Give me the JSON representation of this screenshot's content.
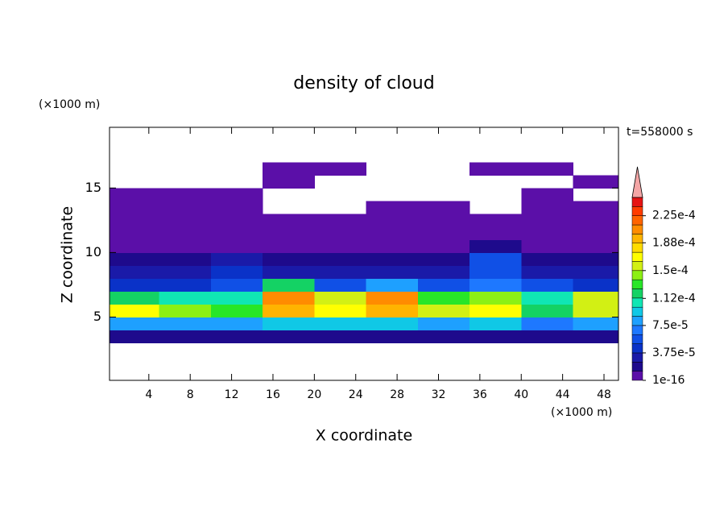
{
  "chart_data": {
    "type": "contour",
    "title": "density of cloud",
    "x_label": "X coordinate",
    "y_label": "Z coordinate",
    "x_unit": "(×1000 m)",
    "y_unit": "(×1000 m)",
    "time_label": "t=558000 s",
    "x": [
      2.5,
      7.5,
      12.5,
      17.5,
      22.5,
      27.5,
      32.5,
      37.5,
      42.5,
      47.5
    ],
    "y": [
      0.5,
      1.5,
      2.5,
      3.5,
      4.5,
      5.5,
      6.5,
      7.5,
      8.5,
      9.5,
      10.5,
      11.5,
      12.5,
      13.5,
      14.5,
      15.5,
      16.5,
      17.5,
      18.5,
      19.5
    ],
    "values": [
      [
        0,
        0,
        0,
        1.5e-05,
        8e-05,
        0.00017,
        0.00012,
        4e-05,
        3e-05,
        2e-05,
        8e-06,
        5e-06,
        5e-06,
        5e-06,
        3e-06,
        0,
        0,
        0,
        0,
        0
      ],
      [
        0,
        0,
        0,
        1.5e-05,
        8e-05,
        0.00014,
        0.0001,
        4e-05,
        3e-05,
        2e-05,
        8e-06,
        5e-06,
        5e-06,
        5e-06,
        3e-06,
        0,
        0,
        0,
        0,
        0
      ],
      [
        0,
        0,
        0,
        1.5e-05,
        8e-05,
        0.00013,
        0.0001,
        6e-05,
        4e-05,
        2.5e-05,
        1e-05,
        5e-06,
        5e-06,
        5e-06,
        3e-06,
        0,
        0,
        0,
        0,
        0
      ],
      [
        0,
        0,
        0,
        1.5e-05,
        9e-05,
        0.00019,
        0.00021,
        0.00012,
        3e-05,
        2e-05,
        8e-06,
        5e-06,
        3e-06,
        0,
        0,
        3e-06,
        3e-06,
        0,
        0,
        0
      ],
      [
        0,
        0,
        0,
        1.5e-05,
        9e-05,
        0.00017,
        0.00015,
        6e-05,
        3e-05,
        2e-05,
        8e-06,
        5e-06,
        3e-06,
        0,
        0,
        0,
        3e-06,
        0,
        0,
        0
      ],
      [
        0,
        0,
        0,
        1.5e-05,
        9e-05,
        0.00019,
        0.0002,
        8e-05,
        3e-05,
        2e-05,
        8e-06,
        5e-06,
        3e-06,
        3e-06,
        0,
        0,
        0,
        0,
        0,
        0
      ],
      [
        0,
        0,
        0,
        1.5e-05,
        8e-05,
        0.00016,
        0.00013,
        5e-05,
        3e-05,
        2e-05,
        8e-06,
        5e-06,
        3e-06,
        3e-06,
        0,
        0,
        0,
        0,
        0,
        0
      ],
      [
        0,
        0,
        0,
        1.5e-05,
        9e-05,
        0.00017,
        0.00014,
        7e-05,
        6e-05,
        5e-05,
        2e-05,
        5e-06,
        3e-06,
        0,
        0,
        0,
        3e-06,
        0,
        0,
        0
      ],
      [
        0,
        0,
        0,
        1.5e-05,
        7e-05,
        0.00012,
        0.00011,
        5e-05,
        3e-05,
        2e-05,
        8e-06,
        5e-06,
        3e-06,
        3e-06,
        3e-06,
        0,
        3e-06,
        0,
        0,
        0
      ],
      [
        0,
        0,
        0,
        1.5e-05,
        8e-05,
        0.00016,
        0.00015,
        4e-05,
        3e-05,
        2e-05,
        8e-06,
        5e-06,
        3e-06,
        3e-06,
        0,
        3e-06,
        0,
        0,
        0,
        0
      ]
    ],
    "xlim": [
      0.2,
      49.4
    ],
    "ylim": [
      0.1,
      19.7
    ],
    "xticks": [
      4,
      8,
      12,
      16,
      20,
      24,
      28,
      32,
      36,
      40,
      44,
      48
    ],
    "yticks": [
      5,
      10,
      15
    ],
    "levels": [
      1e-16,
      1.25e-05,
      2.5e-05,
      3.75e-05,
      5e-05,
      6.25e-05,
      7.5e-05,
      8.75e-05,
      0.0001,
      0.0001125,
      0.000125,
      0.0001375,
      0.00015,
      0.0001625,
      0.000175,
      0.0001875,
      0.0002,
      0.0002125,
      0.000225,
      0.0002375,
      0.00025
    ],
    "colors": [
      "#5b0fa8",
      "#1e0a8c",
      "#1a1aa8",
      "#0a32c8",
      "#1050e6",
      "#1e78ff",
      "#1ea0ff",
      "#10c8e6",
      "#10e6b4",
      "#14d264",
      "#28e628",
      "#8cf014",
      "#d2f014",
      "#ffff00",
      "#ffdc00",
      "#ffb400",
      "#ff8c00",
      "#ff6400",
      "#ff3c00",
      "#e61414",
      "#f4a6a6"
    ],
    "colorbar_ticks": [
      1e-16,
      {
        "value": 3.75e-05,
        "label": "3.75e-5"
      },
      {
        "value": 7.5e-05,
        "label": "7.5e-5"
      },
      {
        "value": 0.000112,
        "label": "1.12e-4"
      },
      {
        "value": 0.00015,
        "label": "1.5e-4"
      },
      {
        "value": 0.000188,
        "label": "1.88e-4"
      },
      {
        "value": 0.000225,
        "label": "2.25e-4"
      }
    ]
  }
}
